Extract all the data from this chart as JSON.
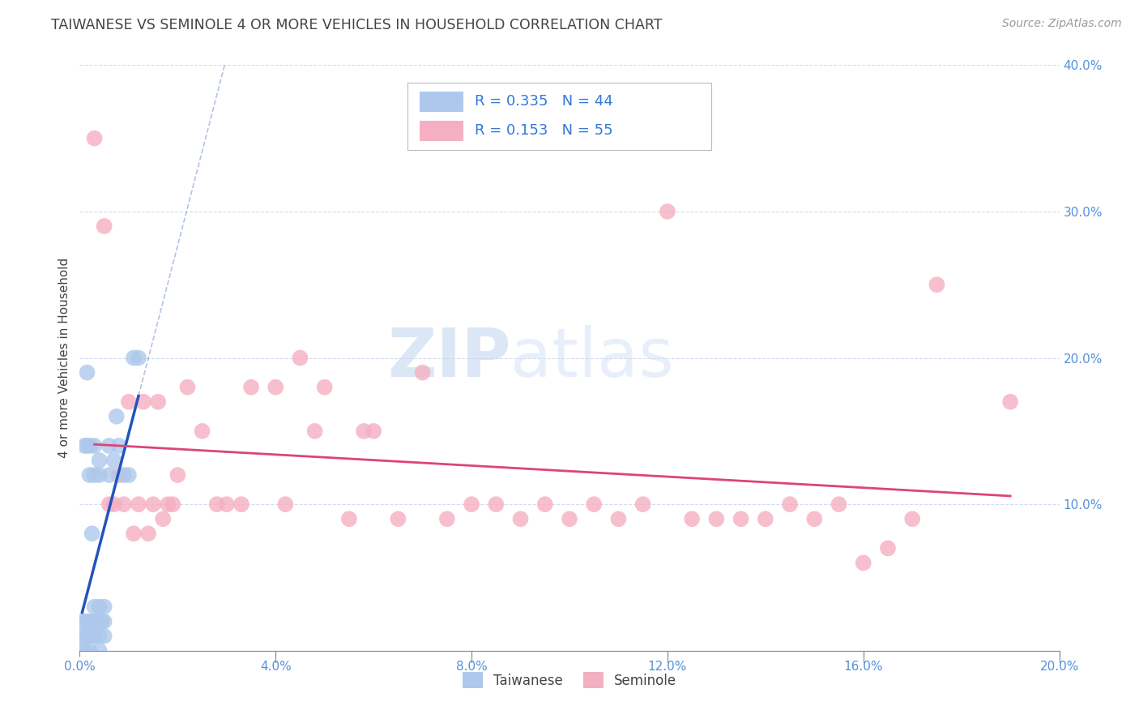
{
  "title": "TAIWANESE VS SEMINOLE 4 OR MORE VEHICLES IN HOUSEHOLD CORRELATION CHART",
  "source": "Source: ZipAtlas.com",
  "ylabel": "4 or more Vehicles in Household",
  "xlabel_taiwanese": "Taiwanese",
  "xlabel_seminole": "Seminole",
  "watermark_zip": "ZIP",
  "watermark_atlas": "atlas",
  "x_min": 0.0,
  "x_max": 0.2,
  "y_min": 0.0,
  "y_max": 0.4,
  "taiwanese_R": 0.335,
  "taiwanese_N": 44,
  "seminole_R": 0.153,
  "seminole_N": 55,
  "taiwanese_color": "#adc8ec",
  "seminole_color": "#f5afc2",
  "taiwanese_line_color": "#2255bb",
  "seminole_line_color": "#dd4477",
  "legend_text_color": "#3377dd",
  "background_color": "#ffffff",
  "grid_color": "#ccd8ee",
  "title_color": "#444444",
  "source_color": "#999999",
  "taiwanese_x": [
    0.0005,
    0.0005,
    0.0008,
    0.001,
    0.001,
    0.001,
    0.0012,
    0.0013,
    0.0015,
    0.0015,
    0.0015,
    0.0018,
    0.002,
    0.002,
    0.002,
    0.002,
    0.0022,
    0.0025,
    0.0025,
    0.003,
    0.003,
    0.003,
    0.003,
    0.003,
    0.0032,
    0.0035,
    0.004,
    0.004,
    0.004,
    0.004,
    0.004,
    0.0045,
    0.005,
    0.005,
    0.005,
    0.006,
    0.006,
    0.007,
    0.0075,
    0.008,
    0.009,
    0.01,
    0.011,
    0.012
  ],
  "taiwanese_y": [
    0.01,
    0.02,
    0.0,
    0.0,
    0.01,
    0.14,
    0.01,
    0.02,
    0.01,
    0.14,
    0.19,
    0.02,
    0.0,
    0.01,
    0.02,
    0.12,
    0.14,
    0.01,
    0.08,
    0.01,
    0.02,
    0.03,
    0.12,
    0.14,
    0.02,
    0.02,
    0.0,
    0.01,
    0.03,
    0.12,
    0.13,
    0.02,
    0.01,
    0.02,
    0.03,
    0.12,
    0.14,
    0.13,
    0.16,
    0.14,
    0.12,
    0.12,
    0.2,
    0.2
  ],
  "seminole_x": [
    0.003,
    0.005,
    0.006,
    0.007,
    0.008,
    0.009,
    0.01,
    0.011,
    0.012,
    0.013,
    0.014,
    0.015,
    0.016,
    0.017,
    0.018,
    0.019,
    0.02,
    0.022,
    0.025,
    0.028,
    0.03,
    0.033,
    0.035,
    0.04,
    0.042,
    0.045,
    0.048,
    0.05,
    0.055,
    0.058,
    0.06,
    0.065,
    0.07,
    0.075,
    0.08,
    0.085,
    0.09,
    0.095,
    0.1,
    0.105,
    0.11,
    0.115,
    0.12,
    0.125,
    0.13,
    0.135,
    0.14,
    0.145,
    0.15,
    0.155,
    0.16,
    0.165,
    0.17,
    0.175,
    0.19
  ],
  "seminole_y": [
    0.35,
    0.29,
    0.1,
    0.1,
    0.12,
    0.1,
    0.17,
    0.08,
    0.1,
    0.17,
    0.08,
    0.1,
    0.17,
    0.09,
    0.1,
    0.1,
    0.12,
    0.18,
    0.15,
    0.1,
    0.1,
    0.1,
    0.18,
    0.18,
    0.1,
    0.2,
    0.15,
    0.18,
    0.09,
    0.15,
    0.15,
    0.09,
    0.19,
    0.09,
    0.1,
    0.1,
    0.09,
    0.1,
    0.09,
    0.1,
    0.09,
    0.1,
    0.3,
    0.09,
    0.09,
    0.09,
    0.09,
    0.1,
    0.09,
    0.1,
    0.06,
    0.07,
    0.09,
    0.25,
    0.17
  ]
}
